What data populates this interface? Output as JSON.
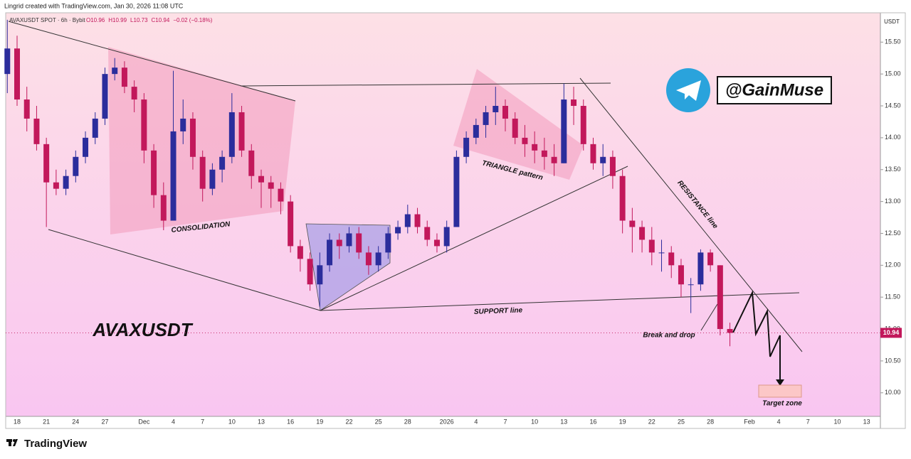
{
  "chart_data": {
    "type": "candlestick",
    "attribution": "Lingrid created with TradingView.com, Jan 30, 2026 11:08 UTC",
    "symbol": "AVAXUSDT SPOT · 6h · Bybit",
    "quote": {
      "values": [
        10.96,
        10.99,
        10.73,
        10.94
      ],
      "value_labels": [
        "O10.96",
        "H10.99",
        "L10.73",
        "C10.94"
      ]
    },
    "change": {
      "value": -0.02,
      "percent": -0.18,
      "label": "−0.02 (−0.18%)"
    },
    "y_unit": "USDT",
    "last_price": 10.94,
    "up_color": "#2b2d9c",
    "down_color": "#c2185b",
    "ylim": [
      9.63,
      15.96
    ],
    "yticks": [
      {
        "value": 10,
        "label": "10.00"
      },
      {
        "value": 10.5,
        "label": "10.50"
      },
      {
        "value": 11,
        "label": "11.00"
      },
      {
        "value": 11.5,
        "label": "11.50"
      },
      {
        "value": 12,
        "label": "12.00"
      },
      {
        "value": 12.5,
        "label": "12.50"
      },
      {
        "value": 13,
        "label": "13.00"
      },
      {
        "value": 13.5,
        "label": "13.50"
      },
      {
        "value": 14,
        "label": "14.00"
      },
      {
        "value": 14.5,
        "label": "14.50"
      },
      {
        "value": 15,
        "label": "15.00"
      },
      {
        "value": 15.5,
        "label": "15.50"
      }
    ],
    "categories": [
      null,
      "18",
      null,
      null,
      "21",
      null,
      null,
      "24",
      null,
      null,
      "27",
      null,
      null,
      null,
      "Dec",
      null,
      null,
      "4",
      null,
      null,
      "7",
      null,
      null,
      "10",
      null,
      null,
      "13",
      null,
      null,
      "16",
      null,
      null,
      "19",
      null,
      null,
      "22",
      null,
      null,
      "25",
      null,
      null,
      "28",
      null,
      null,
      null,
      "2026",
      null,
      null,
      "4",
      null,
      null,
      "7",
      null,
      null,
      "10",
      null,
      null,
      "13",
      null,
      null,
      "16",
      null,
      null,
      "19",
      null,
      null,
      "22",
      null,
      null,
      "25",
      null,
      null,
      "28",
      null,
      null,
      null,
      "Feb",
      null,
      null,
      "4",
      null,
      null,
      "7",
      null,
      null,
      "10",
      null,
      null,
      "13",
      null
    ],
    "values": [
      [
        15.0,
        15.85,
        14.7,
        15.4
      ],
      [
        15.4,
        15.6,
        14.5,
        14.6
      ],
      [
        14.6,
        14.8,
        14.1,
        14.3
      ],
      [
        14.3,
        14.5,
        13.8,
        13.9
      ],
      [
        13.9,
        14.0,
        12.6,
        13.3
      ],
      [
        13.3,
        13.5,
        13.1,
        13.2
      ],
      [
        13.2,
        13.5,
        13.1,
        13.4
      ],
      [
        13.4,
        13.8,
        13.3,
        13.7
      ],
      [
        13.7,
        14.1,
        13.6,
        14.0
      ],
      [
        14.0,
        14.4,
        13.9,
        14.3
      ],
      [
        14.3,
        15.1,
        14.2,
        15.0
      ],
      [
        15.0,
        15.25,
        14.9,
        15.1
      ],
      [
        15.1,
        15.2,
        14.7,
        14.8
      ],
      [
        14.8,
        14.9,
        14.4,
        14.6
      ],
      [
        14.6,
        14.7,
        13.6,
        13.8
      ],
      [
        13.8,
        13.9,
        12.9,
        13.1
      ],
      [
        13.1,
        13.3,
        12.55,
        12.7
      ],
      [
        12.7,
        15.05,
        12.7,
        14.1
      ],
      [
        14.1,
        14.6,
        13.9,
        14.3
      ],
      [
        14.3,
        14.4,
        13.5,
        13.7
      ],
      [
        13.7,
        13.8,
        13.0,
        13.2
      ],
      [
        13.2,
        13.6,
        13.1,
        13.5
      ],
      [
        13.5,
        13.8,
        13.3,
        13.7
      ],
      [
        13.7,
        14.7,
        13.6,
        14.4
      ],
      [
        14.4,
        14.5,
        13.7,
        13.8
      ],
      [
        13.8,
        13.9,
        13.2,
        13.4
      ],
      [
        13.4,
        13.5,
        12.9,
        13.3
      ],
      [
        13.3,
        13.4,
        12.9,
        13.2
      ],
      [
        13.2,
        13.3,
        12.8,
        13.0
      ],
      [
        13.0,
        13.1,
        12.2,
        12.3
      ],
      [
        12.3,
        12.4,
        11.9,
        12.1
      ],
      [
        12.1,
        12.2,
        11.6,
        11.7
      ],
      [
        11.7,
        12.2,
        11.35,
        12.0
      ],
      [
        12.0,
        12.5,
        11.9,
        12.4
      ],
      [
        12.4,
        12.5,
        12.1,
        12.3
      ],
      [
        12.3,
        12.6,
        12.2,
        12.5
      ],
      [
        12.5,
        12.6,
        12.1,
        12.2
      ],
      [
        12.2,
        12.3,
        11.85,
        12.0
      ],
      [
        12.0,
        12.3,
        11.9,
        12.2
      ],
      [
        12.2,
        12.6,
        12.1,
        12.5
      ],
      [
        12.5,
        12.7,
        12.4,
        12.6
      ],
      [
        12.6,
        12.95,
        12.5,
        12.8
      ],
      [
        12.8,
        12.9,
        12.5,
        12.6
      ],
      [
        12.6,
        12.7,
        12.3,
        12.4
      ],
      [
        12.4,
        12.5,
        12.2,
        12.3
      ],
      [
        12.3,
        12.7,
        12.2,
        12.6
      ],
      [
        12.6,
        13.8,
        12.6,
        13.7
      ],
      [
        13.7,
        14.1,
        13.6,
        14.0
      ],
      [
        14.0,
        14.3,
        13.9,
        14.2
      ],
      [
        14.2,
        14.5,
        14.0,
        14.4
      ],
      [
        14.4,
        14.8,
        14.2,
        14.5
      ],
      [
        14.5,
        14.6,
        14.1,
        14.3
      ],
      [
        14.3,
        14.4,
        13.9,
        14.0
      ],
      [
        14.0,
        14.2,
        13.7,
        13.9
      ],
      [
        13.9,
        14.1,
        13.6,
        13.8
      ],
      [
        13.8,
        14.0,
        13.5,
        13.7
      ],
      [
        13.7,
        13.9,
        13.4,
        13.6
      ],
      [
        13.6,
        14.85,
        13.6,
        14.6
      ],
      [
        14.6,
        14.8,
        14.2,
        14.5
      ],
      [
        14.5,
        14.6,
        13.8,
        13.9
      ],
      [
        13.9,
        14.0,
        13.5,
        13.6
      ],
      [
        13.6,
        13.9,
        13.4,
        13.7
      ],
      [
        13.7,
        13.8,
        13.2,
        13.4
      ],
      [
        13.4,
        13.5,
        12.5,
        12.7
      ],
      [
        12.7,
        12.9,
        12.2,
        12.6
      ],
      [
        12.6,
        12.7,
        12.2,
        12.4
      ],
      [
        12.4,
        12.6,
        12.0,
        12.2
      ],
      [
        12.2,
        12.4,
        11.9,
        12.2
      ],
      [
        12.2,
        12.3,
        11.8,
        12.0
      ],
      [
        12.0,
        12.1,
        11.5,
        11.7
      ],
      [
        11.7,
        11.8,
        11.25,
        11.7
      ],
      [
        11.7,
        12.25,
        11.6,
        12.2
      ],
      [
        12.2,
        12.25,
        11.9,
        12.0
      ],
      [
        12.0,
        12.0,
        10.9,
        11.0
      ],
      [
        11.0,
        11.1,
        10.73,
        10.94
      ],
      null,
      null,
      null,
      null,
      null,
      null,
      null,
      null,
      null,
      null,
      null,
      null,
      null,
      null,
      null
    ],
    "annotations": {
      "consolidation": "CONSOLIDATION",
      "triangle": "TRIANGLE pattern",
      "support": "SUPPORT line",
      "resistance": "RESISTANCE line",
      "break": "Break and drop",
      "target": "Target zone",
      "ticker": "AVAXUSDT",
      "handle": "@GainMuse"
    },
    "brand": "TradingView"
  }
}
